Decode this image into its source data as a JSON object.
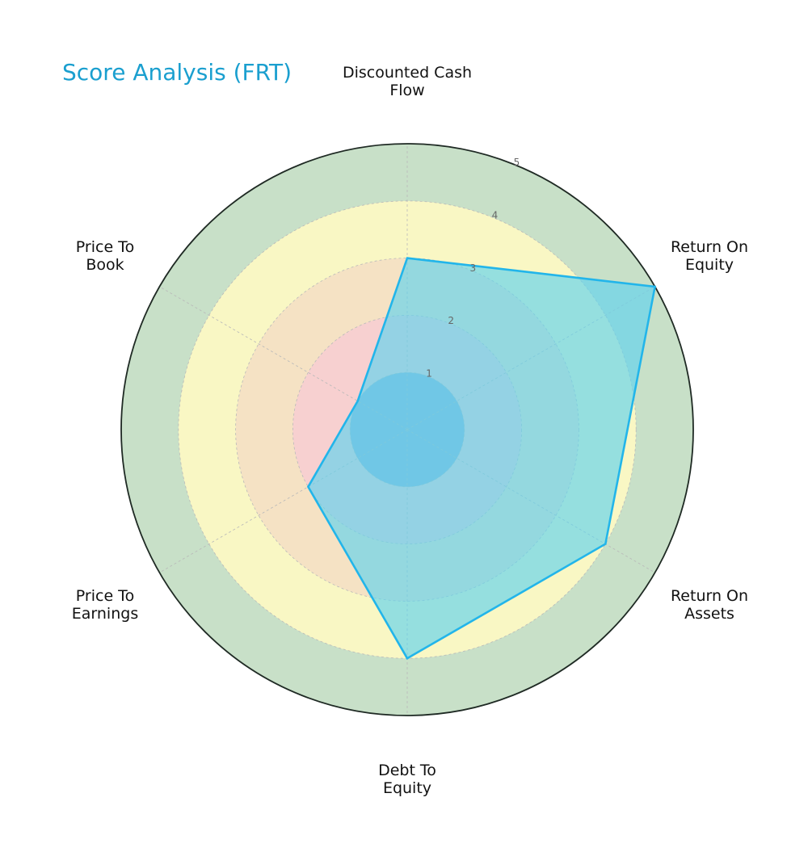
{
  "chart_data": {
    "type": "radar",
    "title": "Score Analysis (FRT)",
    "axes": [
      [
        "Discounted Cash",
        "Flow"
      ],
      [
        "Return On",
        "Equity"
      ],
      [
        "Return On",
        "Assets"
      ],
      [
        "Debt To",
        "Equity"
      ],
      [
        "Price To",
        "Earnings"
      ],
      [
        "Price To",
        "Book"
      ]
    ],
    "values": [
      3,
      5,
      4,
      4,
      2,
      1
    ],
    "rlim": [
      0,
      5
    ],
    "rticks": [
      "1",
      "2",
      "3",
      "4",
      "5"
    ],
    "grid": true,
    "colors": {
      "title": "#1a9fcf",
      "series_line": "#22b5ea",
      "series_fill": "#5fd3ee",
      "band_1": "#8fb2d6",
      "band_2": "#f7d0d0",
      "band_3": "#f5e2c4",
      "band_4": "#f9f7c4",
      "band_5": "#c8e0c8",
      "outer_ring": "#1f2a24"
    }
  }
}
